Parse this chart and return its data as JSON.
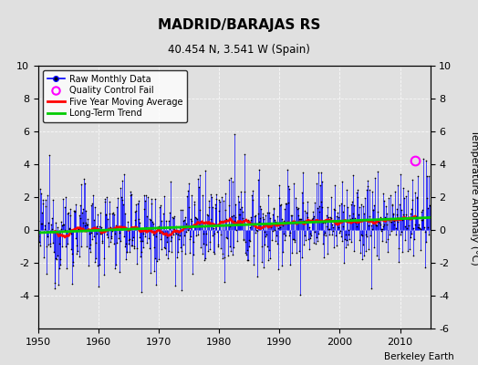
{
  "title": "MADRID/BARAJAS RS",
  "subtitle": "40.454 N, 3.541 W (Spain)",
  "ylabel": "Temperature Anomaly (°C)",
  "xlabel_credit": "Berkeley Earth",
  "xlim": [
    1950,
    2015
  ],
  "ylim": [
    -6,
    10
  ],
  "yticks_right": [
    -6,
    -4,
    -2,
    0,
    2,
    4,
    6,
    8,
    10
  ],
  "yticks_left": [
    -4,
    -2,
    0,
    2,
    4,
    6,
    8,
    10
  ],
  "xticks": [
    1950,
    1960,
    1970,
    1980,
    1990,
    2000,
    2010
  ],
  "raw_color": "#0000ff",
  "moving_avg_color": "#ff0000",
  "trend_color": "#00cc00",
  "qc_fail_color": "#ff00ff",
  "background_color": "#e0e0e0",
  "seed": 12345,
  "num_months": 780,
  "start_year": 1950,
  "noise_std": 1.4,
  "qc_fail_time": 2012.5,
  "qc_fail_val": 4.2
}
